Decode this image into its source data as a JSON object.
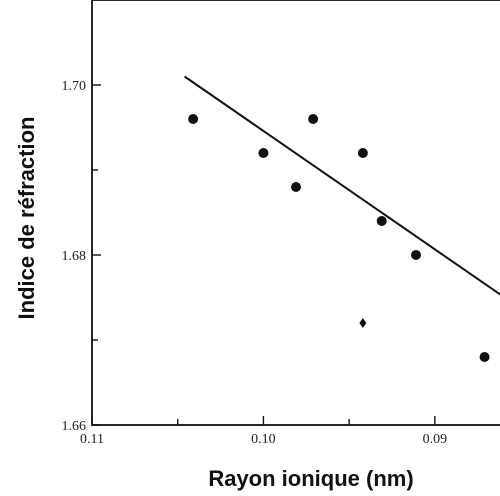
{
  "chart_data": {
    "type": "scatter",
    "title": "",
    "xlabel": "Rayon ionique (nm)",
    "ylabel": "Indice de réfraction",
    "x_axis_reversed": true,
    "xlim": [
      0.11,
      0.0855
    ],
    "ylim": [
      1.66,
      1.71
    ],
    "x_ticks": [
      0.11,
      0.105,
      0.1,
      0.095,
      0.09
    ],
    "x_tick_labels": [
      "0.11",
      "",
      "0.10",
      "",
      "0.09"
    ],
    "y_ticks": [
      1.66,
      1.67,
      1.68,
      1.69,
      1.7
    ],
    "y_tick_labels": [
      "1.66",
      "",
      "1.68",
      "",
      "1.70"
    ],
    "grid": false,
    "legend": "none",
    "series": [
      {
        "marker": "circle",
        "points": [
          {
            "x": 0.1041,
            "y": 1.696
          },
          {
            "x": 0.1,
            "y": 1.692
          },
          {
            "x": 0.0981,
            "y": 1.688
          },
          {
            "x": 0.0971,
            "y": 1.696
          },
          {
            "x": 0.0942,
            "y": 1.692
          },
          {
            "x": 0.0931,
            "y": 1.684
          },
          {
            "x": 0.0911,
            "y": 1.68
          },
          {
            "x": 0.0871,
            "y": 1.668
          }
        ]
      },
      {
        "marker": "diamond",
        "points": [
          {
            "x": 0.0942,
            "y": 1.672
          }
        ]
      }
    ],
    "trend_line": {
      "x": [
        0.1046,
        0.0855
      ],
      "y": [
        1.701,
        1.6744
      ]
    },
    "colors": {
      "ink": "#111111",
      "background": "#ffffff"
    }
  }
}
